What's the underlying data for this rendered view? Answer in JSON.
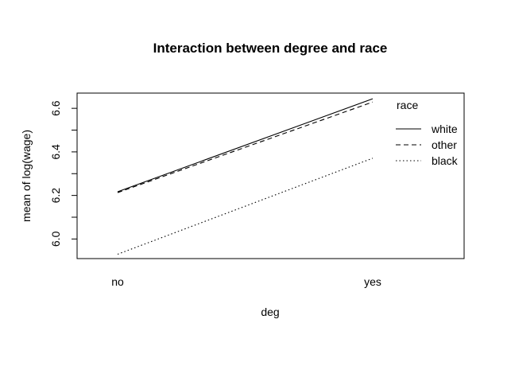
{
  "chart_data": {
    "type": "line",
    "title": "Interaction between degree and race",
    "xlabel": "deg",
    "ylabel": "mean of  log(wage)",
    "categories": [
      "no",
      "yes"
    ],
    "ylim": [
      5.91,
      6.67
    ],
    "yticks": [
      6.0,
      6.2,
      6.4,
      6.6
    ],
    "ytick_labels": [
      "6.0",
      "6.2",
      "6.4",
      "6.6"
    ],
    "legend_title": "race",
    "legend_position": "top-right",
    "series": [
      {
        "name": "white",
        "linestyle": "solid",
        "values": [
          6.217,
          6.644
        ]
      },
      {
        "name": "other",
        "linestyle": "dashed",
        "values": [
          6.213,
          6.629
        ]
      },
      {
        "name": "black",
        "linestyle": "dotted",
        "values": [
          5.93,
          6.371
        ]
      }
    ],
    "line_color": "#000000",
    "grid": false
  }
}
